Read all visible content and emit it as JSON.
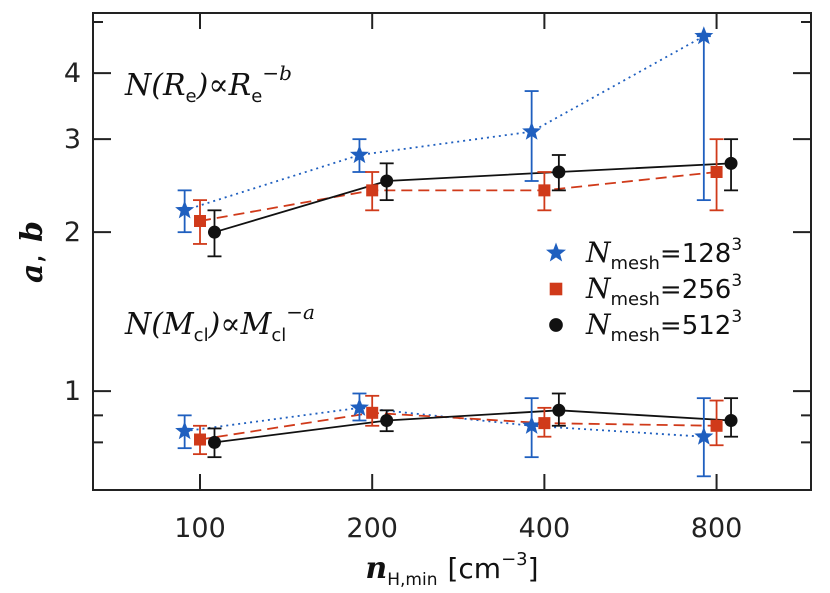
{
  "chart_data": {
    "type": "scatter",
    "x_scale": "log",
    "y_scale": "log",
    "x_ticks": [
      100,
      200,
      400,
      800
    ],
    "x_tick_labels": [
      "100",
      "200",
      "400",
      "800"
    ],
    "y_major_ticks": [
      1,
      2,
      3,
      4
    ],
    "y_tick_labels": [
      "1",
      "2",
      "3",
      "4"
    ],
    "y_minor_ticks": [
      0.8,
      0.9,
      5
    ],
    "xlim": [
      65,
      1170
    ],
    "ylim": [
      0.65,
      5.2
    ],
    "xlabel": {
      "main": "n",
      "sub": "H,min",
      "unit": "[cm",
      "exp": "−3",
      "close": "]"
    },
    "ylabel": {
      "a": "a",
      "sep": ",",
      "b": "b"
    },
    "annotations": {
      "top": {
        "pre": "N(R",
        "sub1": "e",
        "mid": ")∝R",
        "sub2": "e",
        "sup": "−b"
      },
      "bottom": {
        "pre": "N(M",
        "sub1": "cl",
        "mid": ")∝M",
        "sub2": "cl",
        "sup": "−a"
      }
    },
    "series": [
      {
        "name": {
          "main": "N",
          "sub": "mesh",
          "eq": "=128",
          "sup": "3"
        },
        "marker": "star",
        "line": "dotted",
        "color": "#1f5fbf",
        "x": [
          94,
          190,
          380,
          760
        ],
        "b": {
          "y": [
            2.2,
            2.8,
            3.1,
            4.7
          ],
          "lo": [
            2.0,
            2.6,
            2.5,
            2.3
          ],
          "hi": [
            2.4,
            3.0,
            3.7,
            4.7
          ]
        },
        "a": {
          "y": [
            0.84,
            0.93,
            0.86,
            0.82
          ],
          "lo": [
            0.78,
            0.88,
            0.75,
            0.69
          ],
          "hi": [
            0.9,
            0.99,
            0.97,
            0.97
          ]
        }
      },
      {
        "name": {
          "main": "N",
          "sub": "mesh",
          "eq": "=256",
          "sup": "3"
        },
        "marker": "square",
        "line": "dashed",
        "color": "#d03a1a",
        "x": [
          100,
          200,
          400,
          800
        ],
        "b": {
          "y": [
            2.1,
            2.4,
            2.4,
            2.6
          ],
          "lo": [
            1.9,
            2.2,
            2.2,
            2.2
          ],
          "hi": [
            2.3,
            2.6,
            2.6,
            3.0
          ]
        },
        "a": {
          "y": [
            0.81,
            0.91,
            0.87,
            0.86
          ],
          "lo": [
            0.76,
            0.86,
            0.82,
            0.79
          ],
          "hi": [
            0.86,
            0.98,
            0.93,
            0.96
          ]
        }
      },
      {
        "name": {
          "main": "N",
          "sub": "mesh",
          "eq": "=512",
          "sup": "3"
        },
        "marker": "circle",
        "line": "solid",
        "color": "#111111",
        "x": [
          106,
          212,
          424,
          848
        ],
        "b": {
          "y": [
            2.0,
            2.5,
            2.6,
            2.7
          ],
          "lo": [
            1.8,
            2.3,
            2.4,
            2.4
          ],
          "hi": [
            2.2,
            2.7,
            2.8,
            3.0
          ]
        },
        "a": {
          "y": [
            0.8,
            0.88,
            0.92,
            0.88
          ],
          "lo": [
            0.75,
            0.84,
            0.86,
            0.82
          ],
          "hi": [
            0.85,
            0.92,
            0.99,
            0.97
          ]
        }
      }
    ]
  }
}
